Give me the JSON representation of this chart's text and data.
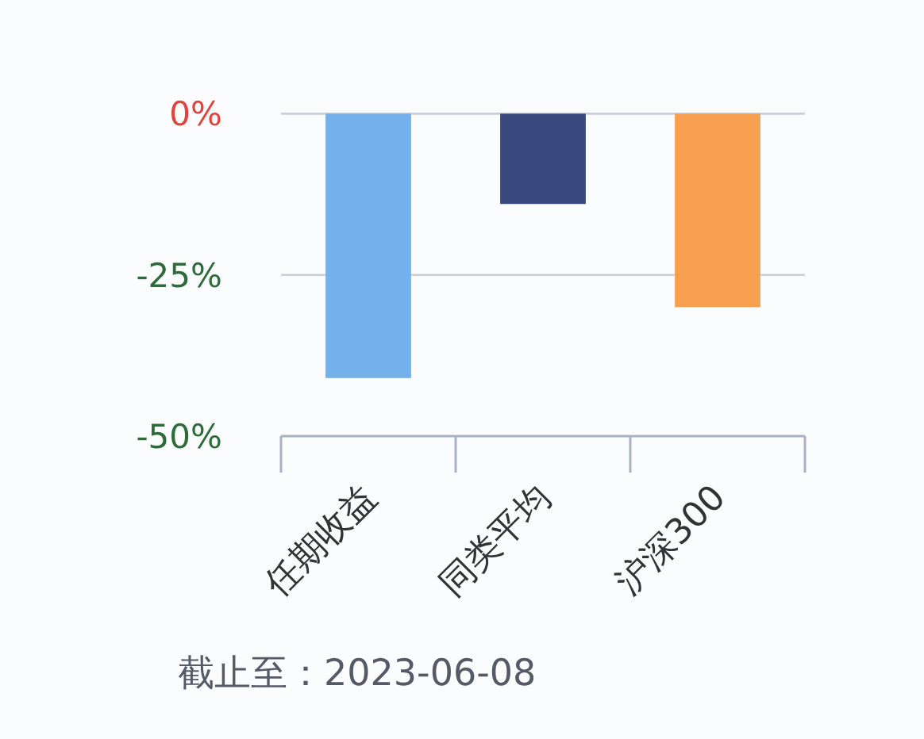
{
  "chart_data": {
    "type": "bar",
    "categories": [
      "任期收益",
      "同类平均",
      "沪深300"
    ],
    "values": [
      -41,
      -14,
      -30
    ],
    "colors": [
      "#74b0ec",
      "#3b4a7e",
      "#f6a04f"
    ],
    "ylim": [
      -50,
      0
    ],
    "yticks": [
      {
        "value": 0,
        "label": "0%"
      },
      {
        "value": -25,
        "label": "-25%"
      },
      {
        "value": -50,
        "label": "-50%"
      }
    ],
    "grid": "y",
    "annotations": [
      "截止至：2023-06-08"
    ]
  }
}
